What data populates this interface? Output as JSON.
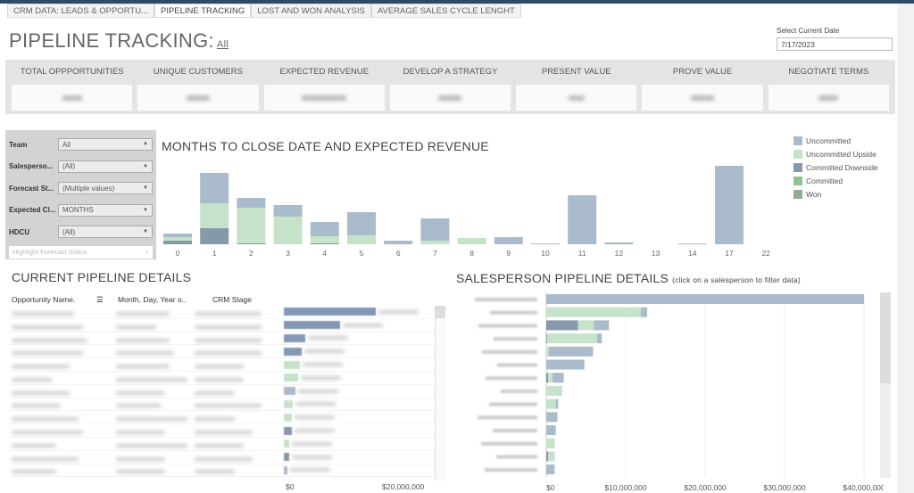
{
  "tabs": [
    {
      "label": "CRM DATA: LEADS & OPPORTU...",
      "active": false
    },
    {
      "label": "PIPELINE TRACKING",
      "active": true
    },
    {
      "label": "LOST AND WON ANALYSIS",
      "active": false
    },
    {
      "label": "AVERAGE SALES CYCLE LENGHT",
      "active": false
    }
  ],
  "header": {
    "title": "PIPELINE TRACKING:",
    "filter_link": "All"
  },
  "date_picker": {
    "label": "Select Current Date",
    "value": "7/17/2023"
  },
  "kpis": [
    {
      "label": "TOTAL OPPPORTUNITIES"
    },
    {
      "label": "UNIQUE CUSTOMERS"
    },
    {
      "label": "EXPECTED REVENUE"
    },
    {
      "label": "DEVELOP A STRATEGY"
    },
    {
      "label": "PRESENT VALUE"
    },
    {
      "label": "PROVE VALUE"
    },
    {
      "label": "NEGOTIATE TERMS"
    }
  ],
  "filters": [
    {
      "label": "Team",
      "value": "All"
    },
    {
      "label": "Salesperso...",
      "value": "(All)"
    },
    {
      "label": "Forecast St...",
      "value": "(Multiple values)"
    },
    {
      "label": "Expected Cl...",
      "value": "MONTHS"
    },
    {
      "label": "HDCU",
      "value": "(All)"
    }
  ],
  "highlight_placeholder": "Highlight Forecast Status",
  "colors": {
    "Uncommitted": "#aabbcb",
    "Uncommitted Upside": "#c6e3c9",
    "Committed Downside": "#8698ab",
    "Committed": "#8dc590",
    "Won": "#94ab98"
  },
  "chart_data": [
    {
      "type": "bar",
      "stacked": true,
      "title": "MONTHS TO CLOSE DATE AND EXPECTED REVENUE",
      "legend": "top-right",
      "y_axis_shown": false,
      "categories": [
        "0",
        "1",
        "2",
        "3",
        "4",
        "5",
        "6",
        "7",
        "8",
        "9",
        "10",
        "11",
        "12",
        "13",
        "14",
        "17",
        "22"
      ],
      "series": [
        {
          "name": "Won",
          "values": [
            0,
            0,
            0,
            0,
            0,
            0,
            0,
            0,
            0,
            0,
            0,
            0,
            0,
            0,
            0,
            0,
            0
          ]
        },
        {
          "name": "Committed",
          "values": [
            0,
            0,
            0,
            0,
            0,
            0,
            0,
            0,
            0,
            0,
            0,
            0,
            0,
            0,
            0,
            0,
            0
          ]
        },
        {
          "name": "Committed Downside",
          "values": [
            4,
            18,
            1,
            0,
            1,
            0,
            0,
            0,
            0,
            0,
            0,
            0,
            0,
            0,
            0,
            0,
            0
          ]
        },
        {
          "name": "Uncommitted Upside",
          "values": [
            4,
            28,
            40,
            31,
            8,
            10,
            0,
            4,
            7,
            0,
            0,
            0,
            0,
            0,
            0,
            0,
            0
          ]
        },
        {
          "name": "Uncommitted",
          "values": [
            4,
            34,
            11,
            13,
            16,
            26,
            4,
            25,
            0,
            8,
            1,
            55,
            2,
            0,
            1,
            88,
            0
          ]
        }
      ]
    },
    {
      "type": "bar",
      "orientation": "horizontal",
      "title": "CURRENT PIPELINE DETAILS",
      "columns": [
        "Opportunity Name.",
        "Month, Day, Year o..",
        "CRM Stage"
      ],
      "xticks": [
        "$0",
        "$20,000,000"
      ],
      "xlim": [
        0,
        28000000
      ],
      "values": [
        19000000,
        11700000,
        4400000,
        3700000,
        3300000,
        3000000,
        2400000,
        1900000,
        1700000,
        1700000,
        1100000,
        1100000,
        700000
      ],
      "status": [
        "Uncommitted",
        "Uncommitted",
        "Uncommitted",
        "Uncommitted",
        "Uncommitted Upside",
        "Uncommitted Upside",
        "Uncommitted",
        "Uncommitted Upside",
        "Uncommitted Upside",
        "Committed Downside",
        "Uncommitted Upside",
        "Committed Downside",
        "Uncommitted"
      ]
    },
    {
      "type": "bar",
      "orientation": "horizontal",
      "stacked": true,
      "title": "SALESPERSON PIPELINE DETAILS",
      "subtitle": "(click on a salesperson to filter data)",
      "xticks": [
        "$0",
        "$10,000,000",
        "$20,000,000",
        "$30,000,000",
        "$40,000,000"
      ],
      "xlim": [
        0,
        42000000
      ],
      "series": [
        {
          "name": "Committed Downside",
          "values": [
            0,
            0,
            4000000,
            100000,
            0,
            0,
            250000,
            0,
            0,
            0,
            0,
            0,
            250000,
            0
          ]
        },
        {
          "name": "Uncommitted Upside",
          "values": [
            0,
            11900000,
            2000000,
            6300000,
            300000,
            0,
            550000,
            2000000,
            1200000,
            0,
            0,
            1000000,
            750000,
            0
          ]
        },
        {
          "name": "Uncommitted",
          "values": [
            40000000,
            800000,
            1900000,
            600000,
            5600000,
            4800000,
            1400000,
            0,
            300000,
            1400000,
            1200000,
            50000,
            50000,
            1050000
          ]
        }
      ]
    }
  ]
}
